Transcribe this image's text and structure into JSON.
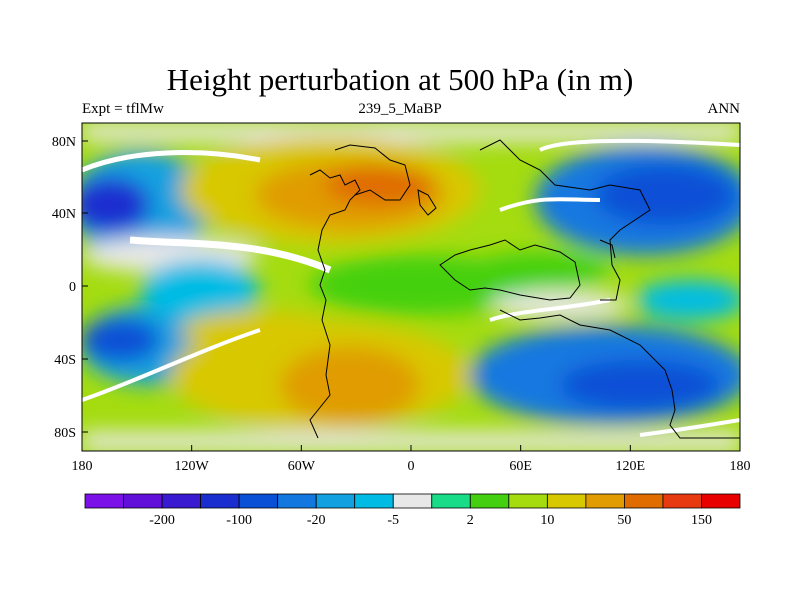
{
  "title": "Height perturbation at 500 hPa (in m)",
  "subtitle_left": "Expt = tflMw",
  "subtitle_center": "239_5_MaBP",
  "subtitle_right": "ANN",
  "lat_ticks": [
    "80N",
    "40N",
    "0",
    "40S",
    "80S"
  ],
  "lon_ticks": [
    "180",
    "120W",
    "60W",
    "0",
    "60E",
    "120E",
    "180"
  ],
  "colorbar": {
    "colors": [
      "#7b10e8",
      "#6010d8",
      "#3a1ad0",
      "#1a2ed0",
      "#0a50d6",
      "#1278e0",
      "#12a0e0",
      "#00bce4",
      "#e8e8e8",
      "#18dc88",
      "#44d010",
      "#a4dc10",
      "#d8c800",
      "#e09c00",
      "#e06c00",
      "#e83a10",
      "#e80000"
    ],
    "labels": [
      "-200",
      "-100",
      "-20",
      "-5",
      "2",
      "10",
      "50",
      "150"
    ]
  }
}
